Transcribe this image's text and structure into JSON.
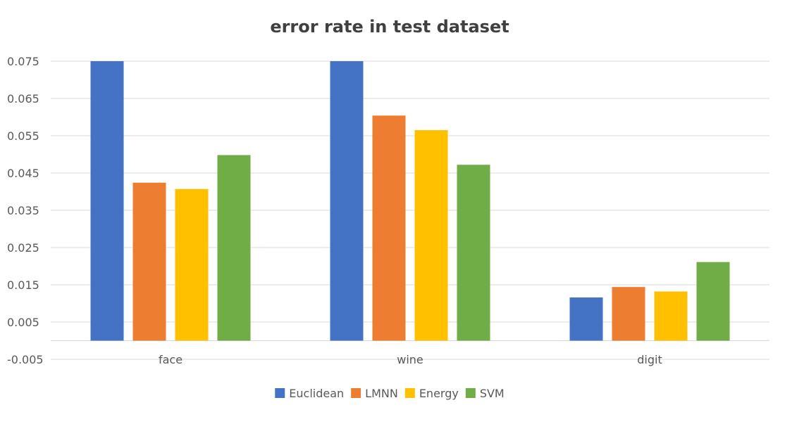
{
  "chart_data": {
    "type": "bar",
    "title": "error rate in test dataset",
    "xlabel": "",
    "ylabel": "",
    "ylim": [
      -0.005,
      0.075
    ],
    "yticks": [
      "-0.005",
      "0.005",
      "0.015",
      "0.025",
      "0.035",
      "0.045",
      "0.055",
      "0.065",
      "0.075"
    ],
    "grid": true,
    "legend_position": "bottom",
    "categories": [
      "face",
      "wine",
      "digit"
    ],
    "series": [
      {
        "name": "Euclidean",
        "color": "#4472C4",
        "values": [
          0.075,
          0.075,
          0.0116
        ]
      },
      {
        "name": "LMNN",
        "color": "#ED7D31",
        "values": [
          0.0424,
          0.0604,
          0.0144
        ]
      },
      {
        "name": "Energy",
        "color": "#FFC000",
        "values": [
          0.0407,
          0.0565,
          0.0132
        ]
      },
      {
        "name": "SVM",
        "color": "#70AD47",
        "values": [
          0.0498,
          0.0472,
          0.0211
        ]
      }
    ]
  }
}
